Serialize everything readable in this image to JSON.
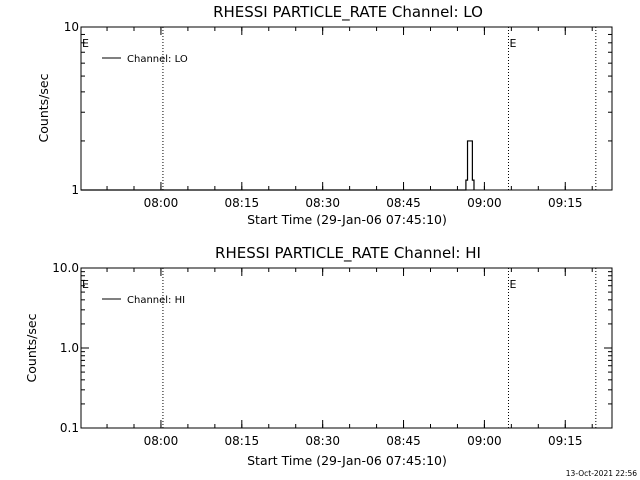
{
  "timestamp": "13-Oct-2021 22:56",
  "chart_data": [
    {
      "type": "line",
      "title": "RHESSI PARTICLE_RATE Channel: LO",
      "xlabel": "Start Time (29-Jan-06 07:45:10)",
      "ylabel": "Counts/sec",
      "y_scale": "log",
      "ylim": [
        1,
        10
      ],
      "y_ticks": [
        {
          "value": 1,
          "label": "1"
        },
        {
          "value": 10,
          "label": "10"
        }
      ],
      "xlim_minutes_since_start": [
        0,
        98.5
      ],
      "x_ticks": [
        {
          "label": "08:00",
          "minutes": 14.83
        },
        {
          "label": "08:15",
          "minutes": 29.83
        },
        {
          "label": "08:30",
          "minutes": 44.83
        },
        {
          "label": "08:45",
          "minutes": 59.83
        },
        {
          "label": "09:00",
          "minutes": 74.83
        },
        {
          "label": "09:15",
          "minutes": 89.83
        }
      ],
      "series": [
        {
          "name": "Channel: LO",
          "points": [
            {
              "t": 0,
              "y": 1
            },
            {
              "t": 71.4,
              "y": 1
            },
            {
              "t": 71.4,
              "y": 1.15
            },
            {
              "t": 71.7,
              "y": 1.15
            },
            {
              "t": 71.7,
              "y": 2
            },
            {
              "t": 72.6,
              "y": 2
            },
            {
              "t": 72.6,
              "y": 1.15
            },
            {
              "t": 72.9,
              "y": 1.15
            },
            {
              "t": 72.9,
              "y": 1
            }
          ]
        }
      ],
      "vlines_minutes": [
        15.2,
        79.3,
        95.5
      ],
      "markers": [
        {
          "text": "E",
          "minutes": 0
        },
        {
          "text": "E",
          "minutes": 79.3
        }
      ],
      "legend_position": "top-left",
      "grid": false
    },
    {
      "type": "line",
      "title": "RHESSI PARTICLE_RATE Channel: HI",
      "xlabel": "Start Time (29-Jan-06 07:45:10)",
      "ylabel": "Counts/sec",
      "y_scale": "log",
      "ylim": [
        0.1,
        10
      ],
      "y_ticks": [
        {
          "value": 0.1,
          "label": "0.1"
        },
        {
          "value": 1,
          "label": "1.0"
        },
        {
          "value": 10,
          "label": "10.0"
        }
      ],
      "xlim_minutes_since_start": [
        0,
        98.5
      ],
      "x_ticks": [
        {
          "label": "08:00",
          "minutes": 14.83
        },
        {
          "label": "08:15",
          "minutes": 29.83
        },
        {
          "label": "08:30",
          "minutes": 44.83
        },
        {
          "label": "08:45",
          "minutes": 59.83
        },
        {
          "label": "09:00",
          "minutes": 74.83
        },
        {
          "label": "09:15",
          "minutes": 89.83
        }
      ],
      "series": [
        {
          "name": "Channel: HI",
          "points": []
        }
      ],
      "vlines_minutes": [
        15.2,
        79.3,
        95.5
      ],
      "markers": [
        {
          "text": "E",
          "minutes": 0
        },
        {
          "text": "E",
          "minutes": 79.3
        }
      ],
      "legend_position": "top-left",
      "grid": false
    }
  ]
}
